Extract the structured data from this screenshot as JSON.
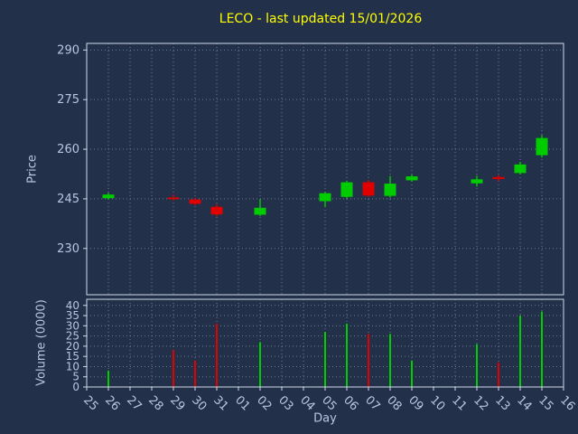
{
  "title": "LECO - last updated 15/01/2026",
  "colors": {
    "background": "#22304a",
    "text": "#b8c6e2",
    "title": "#ffff00",
    "up": "#00cc00",
    "down": "#e00000",
    "grid": "#8fa3c4",
    "frame": "#d2dae8"
  },
  "chart_data": {
    "type": "candlestick+volume",
    "title": "LECO - last updated 15/01/2026",
    "xlabel": "Day",
    "price_ylabel": "Price",
    "volume_ylabel": "Volume (0000)",
    "x_tick_labels": [
      "25",
      "26",
      "27",
      "28",
      "29",
      "30",
      "31",
      "01",
      "02",
      "03",
      "04",
      "05",
      "06",
      "07",
      "08",
      "09",
      "10",
      "11",
      "12",
      "13",
      "14",
      "15",
      "16"
    ],
    "price_ticks": [
      230,
      245,
      260,
      275,
      290
    ],
    "price_ylim": [
      216,
      292
    ],
    "volume_ticks": [
      0,
      5,
      10,
      15,
      20,
      25,
      30,
      35,
      40
    ],
    "volume_ylim": [
      0,
      43
    ],
    "grid": "dotted",
    "legend": "none",
    "candles": [
      {
        "day": "26",
        "open": 245.2,
        "high": 246.8,
        "low": 244.8,
        "close": 246.3,
        "volume": 8
      },
      {
        "day": "29",
        "open": 245.4,
        "high": 246.3,
        "low": 244.5,
        "close": 244.9,
        "volume": 18
      },
      {
        "day": "30",
        "open": 244.8,
        "high": 245.3,
        "low": 243.1,
        "close": 243.5,
        "volume": 13
      },
      {
        "day": "31",
        "open": 242.6,
        "high": 243.4,
        "low": 239.7,
        "close": 240.3,
        "volume": 31
      },
      {
        "day": "02",
        "open": 240.2,
        "high": 244.9,
        "low": 239.8,
        "close": 242.3,
        "volume": 22
      },
      {
        "day": "05",
        "open": 244.3,
        "high": 247.0,
        "low": 242.5,
        "close": 246.7,
        "volume": 27
      },
      {
        "day": "06",
        "open": 245.6,
        "high": 250.5,
        "low": 245.1,
        "close": 250.0,
        "volume": 31
      },
      {
        "day": "07",
        "open": 250.0,
        "high": 250.7,
        "low": 245.5,
        "close": 246.0,
        "volume": 26
      },
      {
        "day": "08",
        "open": 245.9,
        "high": 251.9,
        "low": 245.4,
        "close": 249.6,
        "volume": 26
      },
      {
        "day": "09",
        "open": 250.6,
        "high": 252.3,
        "low": 250.2,
        "close": 251.8,
        "volume": 13
      },
      {
        "day": "12",
        "open": 249.7,
        "high": 252.0,
        "low": 248.7,
        "close": 250.9,
        "volume": 21
      },
      {
        "day": "13",
        "open": 251.6,
        "high": 252.2,
        "low": 250.3,
        "close": 251.0,
        "volume": 12
      },
      {
        "day": "14",
        "open": 252.8,
        "high": 256.2,
        "low": 252.4,
        "close": 255.4,
        "volume": 35
      },
      {
        "day": "15",
        "open": 258.2,
        "high": 264.3,
        "low": 257.5,
        "close": 263.4,
        "volume": 37
      }
    ]
  }
}
